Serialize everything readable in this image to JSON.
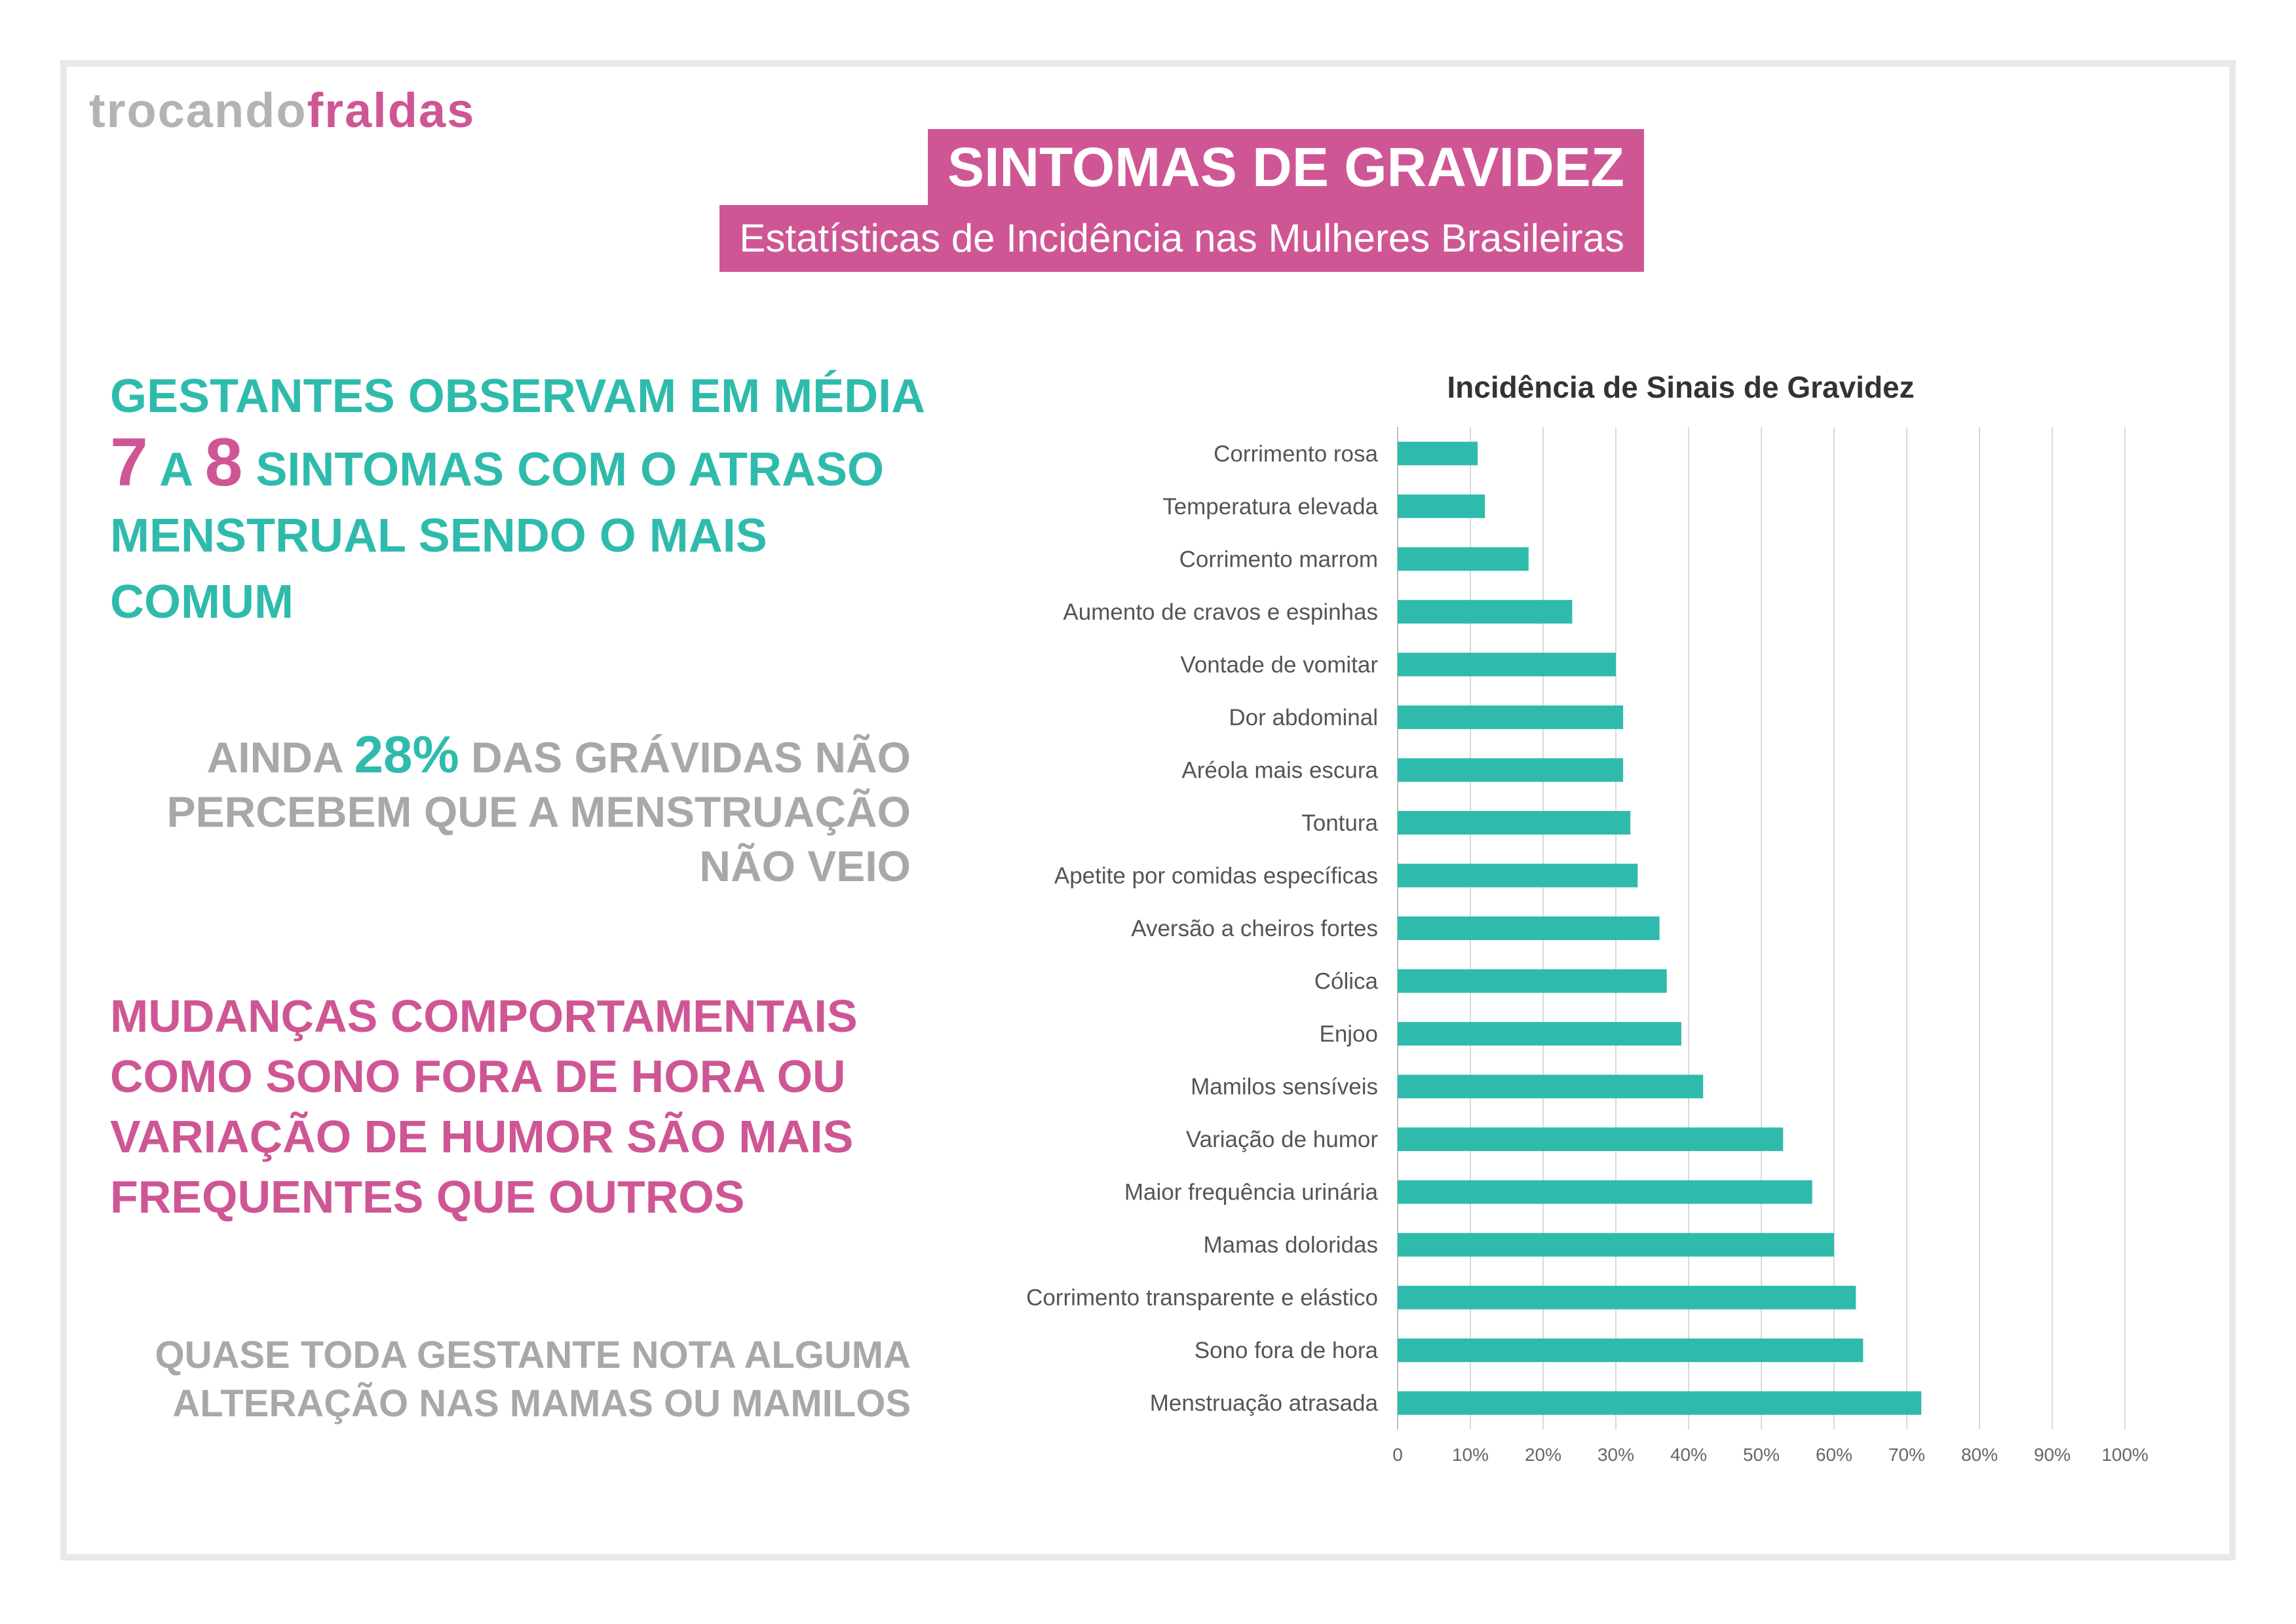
{
  "logo": {
    "part1": "trocando",
    "part2": "fraldas"
  },
  "header": {
    "title": "SINTOMAS DE GRAVIDEZ",
    "subtitle": "Estatísticas de Incidência nas Mulheres Brasileiras"
  },
  "highlights": {
    "h1": {
      "t1": "GESTANTES OBSERVAM EM MÉDIA ",
      "n1": "7",
      "t2": " A ",
      "n2": "8",
      "t3": " SINTOMAS COM O ATRASO MENSTRUAL SENDO O MAIS COMUM"
    },
    "h2": {
      "t1": "AINDA ",
      "pct": "28%",
      "t2": " DAS GRÁVIDAS NÃO PERCEBEM QUE A MENSTRUAÇÃO NÃO VEIO"
    },
    "h3": "MUDANÇAS COMPORTAMENTAIS COMO SONO FORA DE HORA OU VARIAÇÃO DE HUMOR SÃO MAIS FREQUENTES QUE OUTROS",
    "h4": "QUASE TODA GESTANTE NOTA ALGUMA ALTERAÇÃO NAS MAMAS OU MAMILOS"
  },
  "colors": {
    "pink": "#cf5694",
    "teal": "#2fbbac",
    "gray": "#a8a8a8"
  },
  "chart_data": {
    "type": "bar",
    "orientation": "horizontal",
    "title": "Incidência de Sinais de Gravidez",
    "categories": [
      "Corrimento rosa",
      "Temperatura elevada",
      "Corrimento marrom",
      "Aumento de cravos e espinhas",
      "Vontade de vomitar",
      "Dor abdominal",
      "Aréola mais escura",
      "Tontura",
      "Apetite por comidas específicas",
      "Aversão a cheiros fortes",
      "Cólica",
      "Enjoo",
      "Mamilos sensíveis",
      "Variação de humor",
      "Maior frequência urinária",
      "Mamas doloridas",
      "Corrimento transparente e elástico",
      "Sono fora de hora",
      "Menstruação atrasada"
    ],
    "values": [
      11,
      12,
      18,
      24,
      30,
      31,
      31,
      32,
      33,
      36,
      37,
      39,
      42,
      53,
      57,
      60,
      63,
      64,
      72
    ],
    "xlim": [
      0,
      100
    ],
    "xticks": [
      "0",
      "10%",
      "20%",
      "30%",
      "40%",
      "50%",
      "60%",
      "70%",
      "80%",
      "90%",
      "100%"
    ],
    "bar_color": "#2fbbac",
    "grid": true
  }
}
